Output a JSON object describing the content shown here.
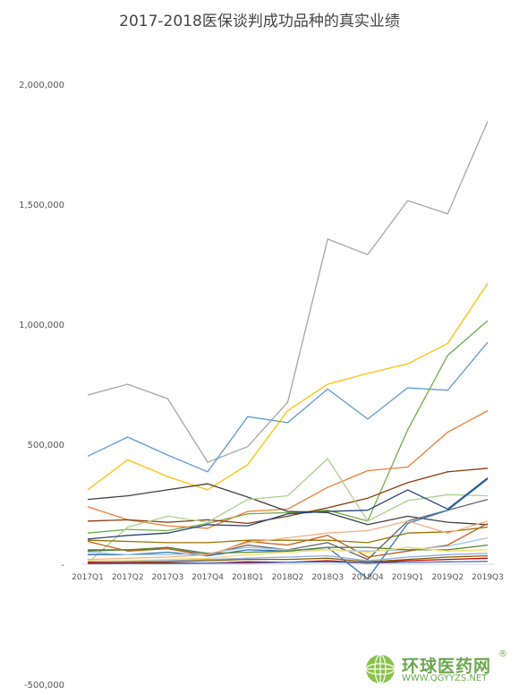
{
  "chart_data": {
    "type": "line",
    "title": "2017-2018医保谈判成功品种的真实业绩",
    "categories": [
      "2017Q1",
      "2017Q2",
      "2017Q3",
      "2017Q4",
      "2018Q1",
      "2018Q2",
      "2018Q3",
      "2018Q4",
      "2019Q1",
      "2019Q2",
      "2019Q3"
    ],
    "ylim": [
      -500000,
      2000000
    ],
    "yticks": [
      -500000,
      0,
      500000,
      1000000,
      1500000,
      2000000
    ],
    "ytick_labels": [
      "-500,000",
      "-",
      "500,000",
      "1,000,000",
      "1,500,000",
      "2,000,000"
    ],
    "grid": false,
    "series": [
      {
        "color": "#a5a5a5",
        "values": [
          705000,
          750000,
          690000,
          425000,
          490000,
          675000,
          1355000,
          1290000,
          1515000,
          1460000,
          1845000
        ]
      },
      {
        "color": "#ffc000",
        "values": [
          310000,
          435000,
          365000,
          310000,
          415000,
          640000,
          750000,
          795000,
          835000,
          920000,
          1170000
        ]
      },
      {
        "color": "#5b9bd5",
        "values": [
          450000,
          530000,
          455000,
          385000,
          615000,
          590000,
          730000,
          605000,
          735000,
          725000,
          925000
        ]
      },
      {
        "color": "#70ad47",
        "values": [
          130000,
          145000,
          140000,
          170000,
          210000,
          215000,
          225000,
          180000,
          560000,
          870000,
          1015000
        ]
      },
      {
        "color": "#ed7d31",
        "values": [
          240000,
          185000,
          160000,
          150000,
          220000,
          230000,
          320000,
          390000,
          405000,
          550000,
          640000
        ]
      },
      {
        "color": "#843c0c",
        "values": [
          180000,
          185000,
          175000,
          185000,
          170000,
          200000,
          235000,
          275000,
          340000,
          385000,
          400000
        ]
      },
      {
        "color": "#404040",
        "values": [
          270000,
          285000,
          310000,
          335000,
          280000,
          220000,
          215000,
          165000,
          200000,
          175000,
          165000
        ]
      },
      {
        "color": "#a9d18e",
        "values": [
          5000,
          155000,
          200000,
          175000,
          270000,
          285000,
          440000,
          180000,
          265000,
          290000,
          285000
        ]
      },
      {
        "color": "#264478",
        "values": [
          105000,
          120000,
          130000,
          165000,
          160000,
          210000,
          220000,
          225000,
          310000,
          230000,
          360000
        ]
      },
      {
        "color": "#997300",
        "values": [
          100000,
          95000,
          90000,
          90000,
          100000,
          100000,
          100000,
          90000,
          130000,
          135000,
          155000
        ]
      },
      {
        "color": "#636363",
        "values": [
          60000,
          60000,
          65000,
          40000,
          80000,
          60000,
          90000,
          20000,
          180000,
          225000,
          270000
        ]
      },
      {
        "color": "#c55a11",
        "values": [
          95000,
          55000,
          65000,
          35000,
          95000,
          80000,
          120000,
          30000,
          55000,
          80000,
          170000
        ]
      },
      {
        "color": "#2e75b6",
        "values": [
          40000,
          40000,
          50000,
          35000,
          60000,
          55000,
          70000,
          -60000,
          170000,
          225000,
          355000
        ]
      },
      {
        "color": "#9dc3e6",
        "values": [
          50000,
          40000,
          40000,
          45000,
          70000,
          60000,
          60000,
          55000,
          60000,
          75000,
          110000
        ]
      },
      {
        "color": "#548235",
        "values": [
          55000,
          60000,
          70000,
          45000,
          50000,
          55000,
          70000,
          70000,
          60000,
          60000,
          80000
        ]
      },
      {
        "color": "#f4b183",
        "values": [
          20000,
          25000,
          30000,
          40000,
          90000,
          110000,
          130000,
          140000,
          180000,
          130000,
          180000
        ]
      },
      {
        "color": "#ffd966",
        "values": [
          15000,
          15000,
          20000,
          25000,
          40000,
          50000,
          60000,
          50000,
          70000,
          55000,
          60000
        ]
      },
      {
        "color": "#8faadc",
        "values": [
          10000,
          12000,
          15000,
          20000,
          25000,
          30000,
          35000,
          15000,
          30000,
          40000,
          45000
        ]
      },
      {
        "color": "#7f6000",
        "values": [
          5000,
          8000,
          10000,
          15000,
          20000,
          20000,
          25000,
          10000,
          20000,
          30000,
          35000
        ]
      },
      {
        "color": "#c00000",
        "values": [
          8000,
          6000,
          5000,
          5000,
          10000,
          8000,
          15000,
          5000,
          15000,
          20000,
          25000
        ]
      },
      {
        "color": "#4472c4",
        "values": [
          2000,
          3000,
          3000,
          5000,
          5000,
          8000,
          10000,
          5000,
          8000,
          10000,
          12000
        ]
      }
    ]
  },
  "watermark": {
    "brand": "环球医药网",
    "registered": "®",
    "url": "WWW.QGYYZS.NET"
  }
}
